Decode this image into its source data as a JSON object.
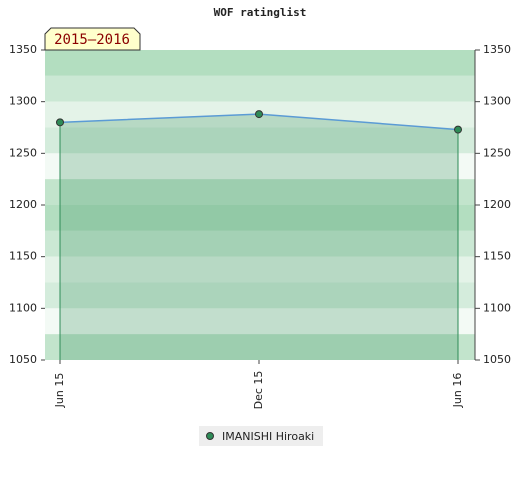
{
  "chart_data": {
    "type": "area",
    "title": "WOF ratinglist",
    "label": "2015–2016",
    "categories": [
      "Jun 15",
      "Dec 15",
      "Jun 16"
    ],
    "series": [
      {
        "name": "IMANISHI Hiroaki",
        "color": "#2e8b57",
        "line_color": "#5b9bd5",
        "values": [
          1280,
          1288,
          1273
        ]
      }
    ],
    "ylim": [
      1050,
      1350
    ],
    "yticks": [
      1050,
      1100,
      1150,
      1200,
      1250,
      1300,
      1350
    ]
  }
}
